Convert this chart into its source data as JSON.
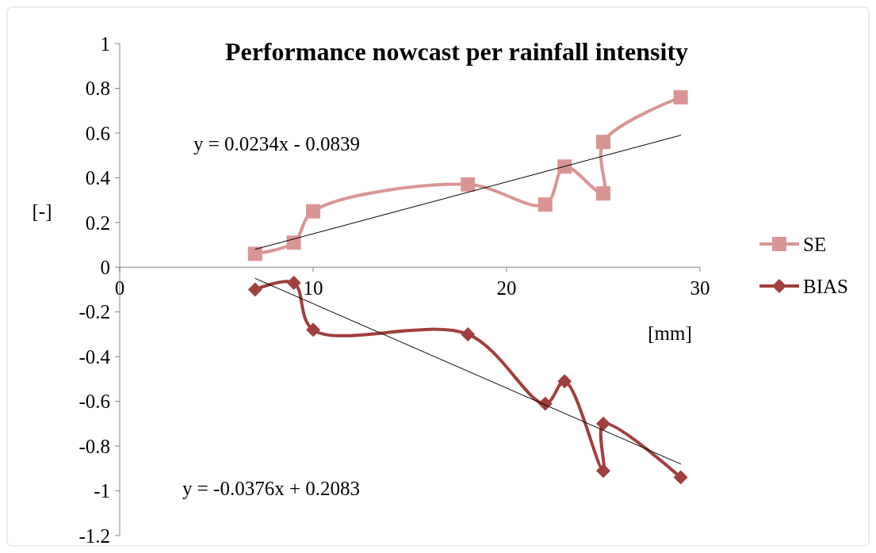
{
  "chart_data": {
    "type": "line",
    "title": "Performance nowcast per rainfall intensity",
    "xlabel": "[mm]",
    "ylabel": "[-]",
    "xlim": [
      0,
      30
    ],
    "xticks": [
      0,
      10,
      20,
      30
    ],
    "ylim": [
      -1.2,
      1
    ],
    "yticks": [
      -1.2,
      -1,
      -0.8,
      -0.6,
      -0.4,
      -0.2,
      0,
      0.2,
      0.4,
      0.6,
      0.8,
      1
    ],
    "grid": false,
    "legend": "right",
    "line_style": "solid",
    "annotations": [
      "y = 0.0234x - 0.0839",
      "y = -0.0376x + 0.2083"
    ],
    "series": [
      {
        "name": "SE",
        "color": "#d99594",
        "marker": "square",
        "x": [
          7,
          9,
          10,
          18,
          22,
          23,
          25,
          25,
          29
        ],
        "values": [
          0.06,
          0.11,
          0.25,
          0.37,
          0.28,
          0.45,
          0.33,
          0.56,
          0.76
        ]
      },
      {
        "name": "BIAS",
        "color": "#a0403e",
        "marker": "diamond",
        "x": [
          7,
          9,
          10,
          18,
          22,
          23,
          25,
          25,
          29
        ],
        "values": [
          -0.1,
          -0.07,
          -0.28,
          -0.3,
          -0.61,
          -0.51,
          -0.91,
          -0.7,
          -0.94
        ]
      },
      {
        "color": "#000000",
        "marker": "none",
        "x": [
          7,
          29
        ],
        "values": [
          0.08,
          0.59
        ]
      },
      {
        "color": "#000000",
        "marker": "none",
        "x": [
          7,
          29
        ],
        "values": [
          -0.05,
          -0.88
        ]
      }
    ]
  }
}
